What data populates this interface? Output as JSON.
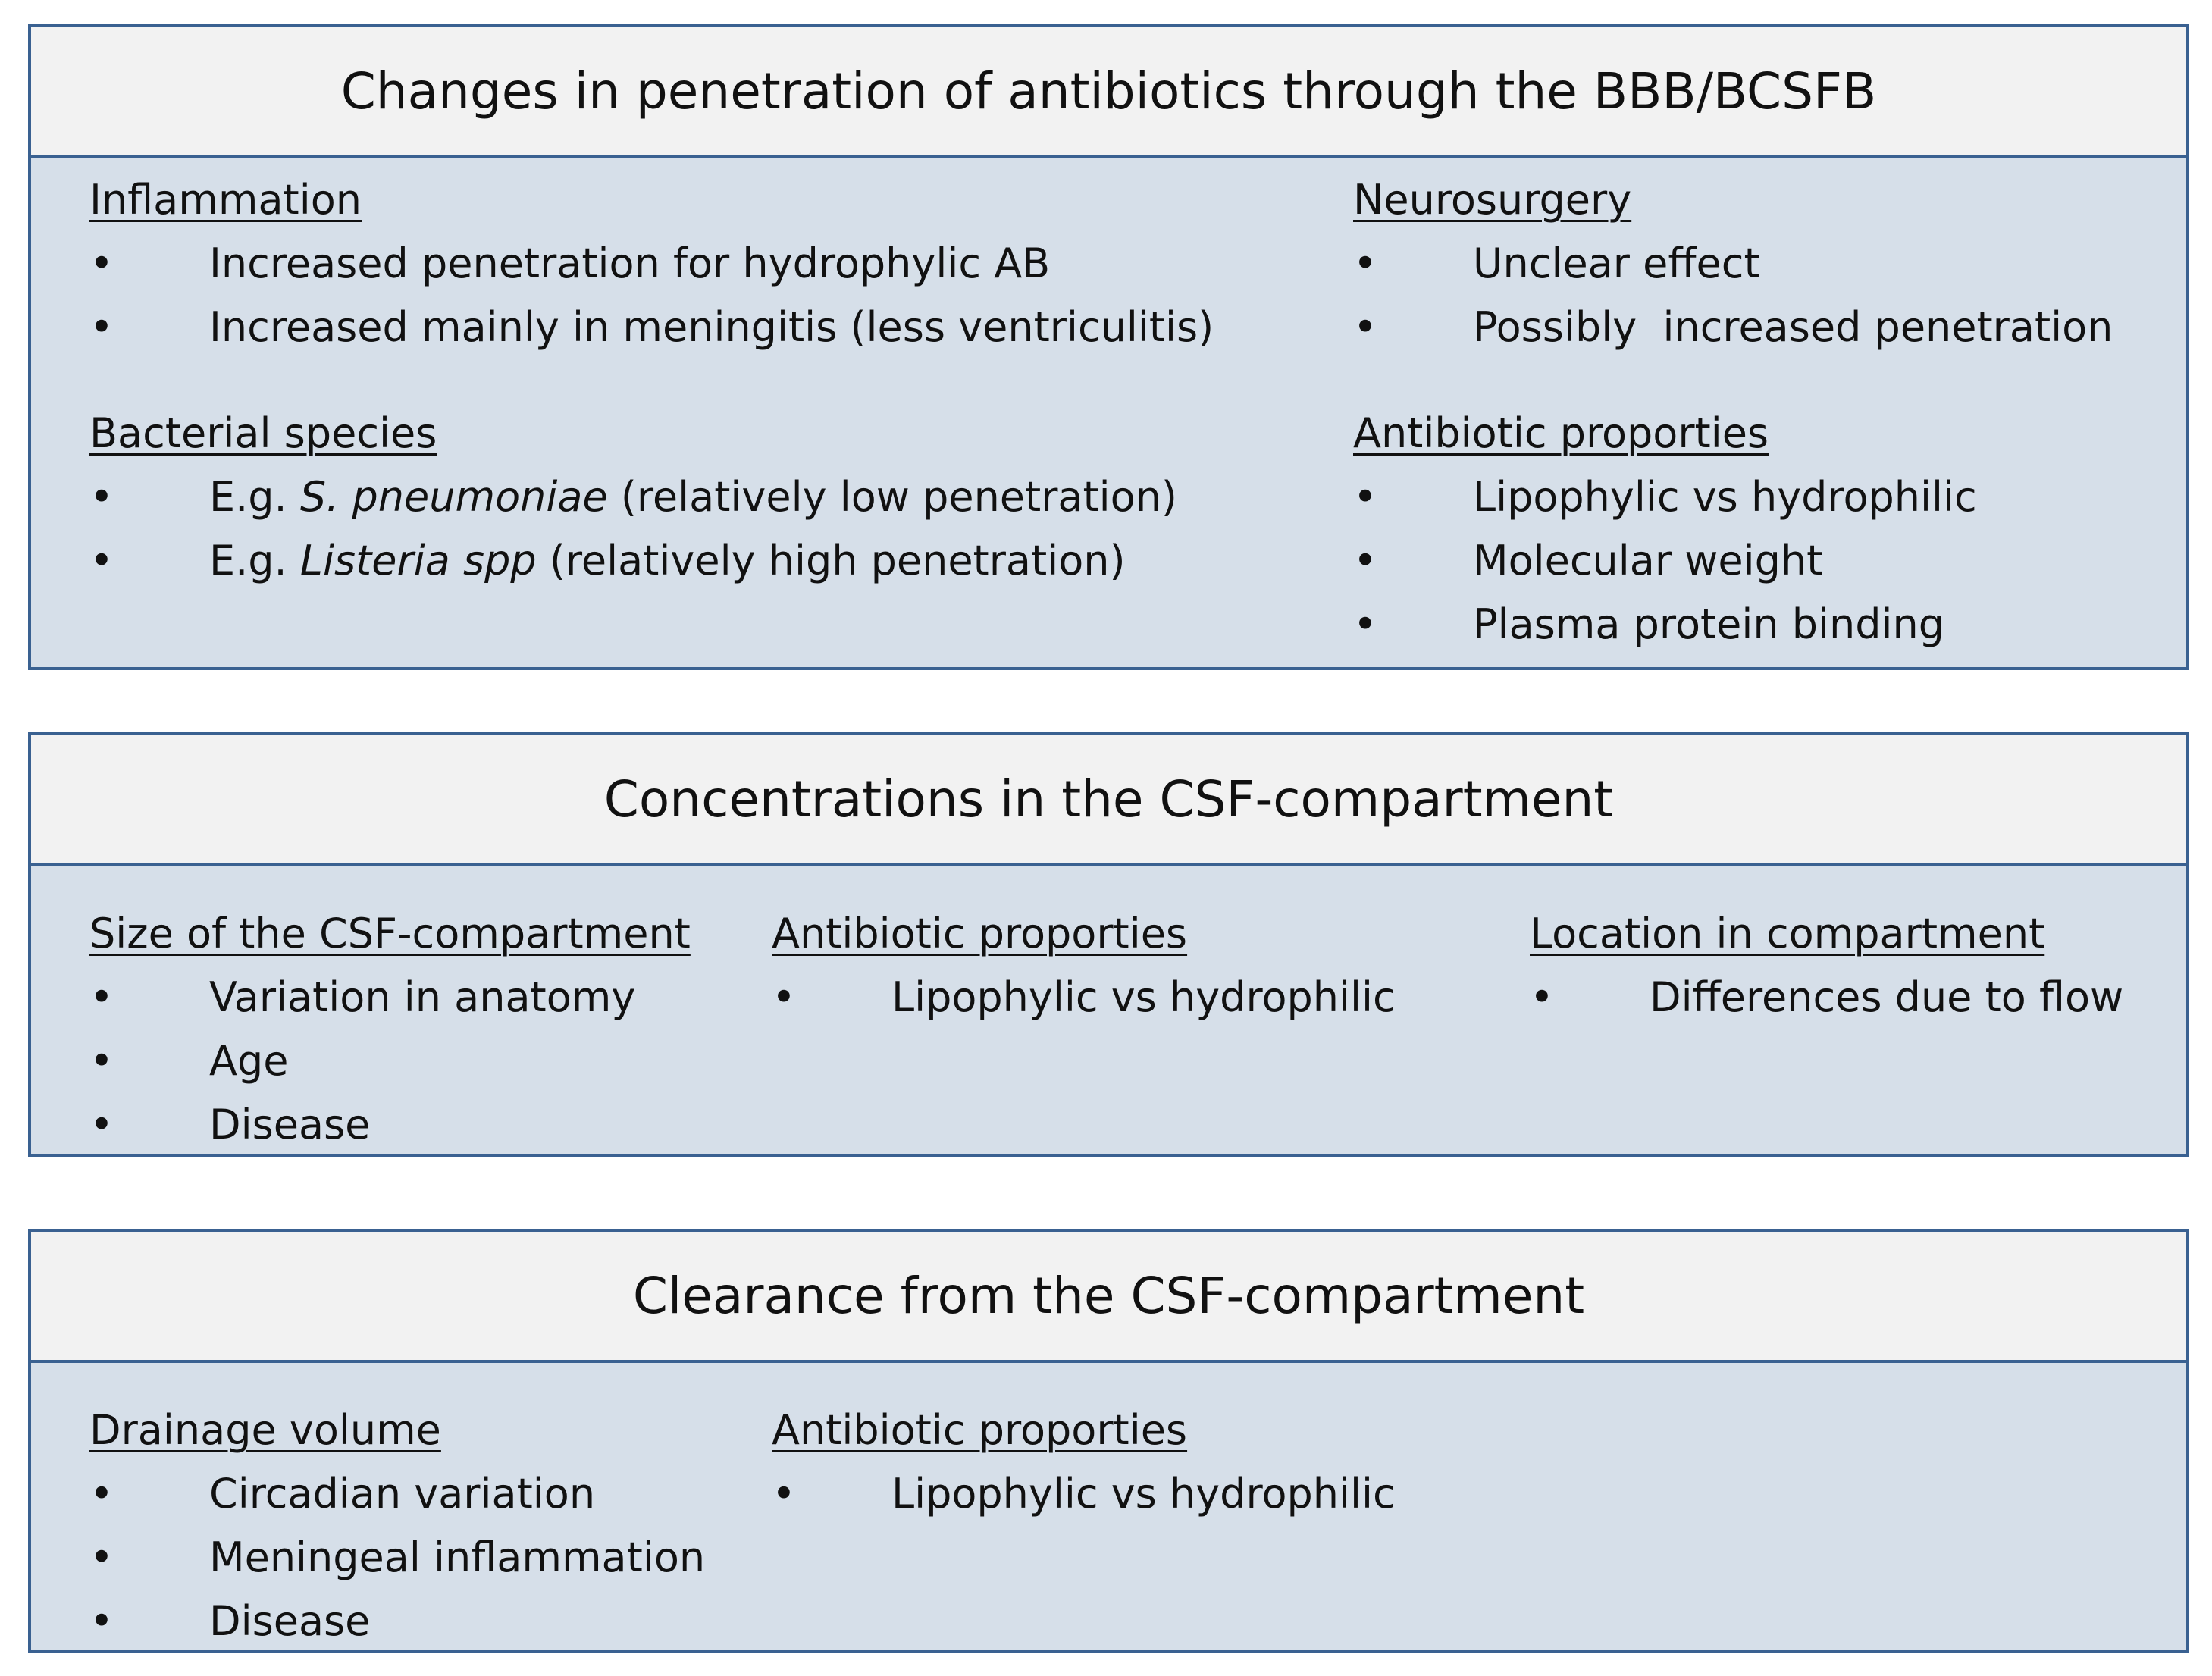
{
  "boxes": [
    {
      "title": "Changes in penetration of antibiotics through the BBB/BCSFB",
      "groups": [
        {
          "heading": "Inflammation",
          "items": [
            [
              {
                "text": "Increased penetration for hydrophylic AB"
              }
            ],
            [
              {
                "text": "Increased mainly in meningitis (less ventriculitis)"
              }
            ]
          ]
        },
        {
          "heading": "Bacterial species",
          "items": [
            [
              {
                "text": "E.g. "
              },
              {
                "text": "S. pneumoniae",
                "italic": true
              },
              {
                "text": " (relatively low penetration)"
              }
            ],
            [
              {
                "text": "E.g. "
              },
              {
                "text": "Listeria spp",
                "italic": true
              },
              {
                "text": " (relatively high penetration)"
              }
            ]
          ]
        },
        {
          "heading": "Neurosurgery",
          "items": [
            [
              {
                "text": "Unclear effect"
              }
            ],
            [
              {
                "text": "Possibly  increased penetration"
              }
            ]
          ]
        },
        {
          "heading": "Antibiotic proporties",
          "items": [
            [
              {
                "text": "Lipophylic vs hydrophilic"
              }
            ],
            [
              {
                "text": "Molecular weight"
              }
            ],
            [
              {
                "text": "Plasma protein binding"
              }
            ]
          ]
        }
      ]
    },
    {
      "title": "Concentrations in the CSF-compartment",
      "groups": [
        {
          "heading": "Size of the CSF-compartment",
          "items": [
            [
              {
                "text": "Variation in anatomy"
              }
            ],
            [
              {
                "text": "Age"
              }
            ],
            [
              {
                "text": "Disease"
              }
            ]
          ]
        },
        {
          "heading": "Antibiotic proporties",
          "items": [
            [
              {
                "text": "Lipophylic vs hydrophilic"
              }
            ]
          ]
        },
        {
          "heading": "Location in compartment",
          "items": [
            [
              {
                "text": "Differences due to flow"
              }
            ]
          ]
        }
      ]
    },
    {
      "title": "Clearance from the CSF-compartment",
      "groups": [
        {
          "heading": "Drainage volume",
          "items": [
            [
              {
                "text": "Circadian variation"
              }
            ],
            [
              {
                "text": "Meningeal inflammation"
              }
            ],
            [
              {
                "text": "Disease"
              }
            ]
          ]
        },
        {
          "heading": "Antibiotic proporties",
          "items": [
            [
              {
                "text": "Lipophylic vs hydrophilic"
              }
            ]
          ]
        }
      ]
    }
  ]
}
